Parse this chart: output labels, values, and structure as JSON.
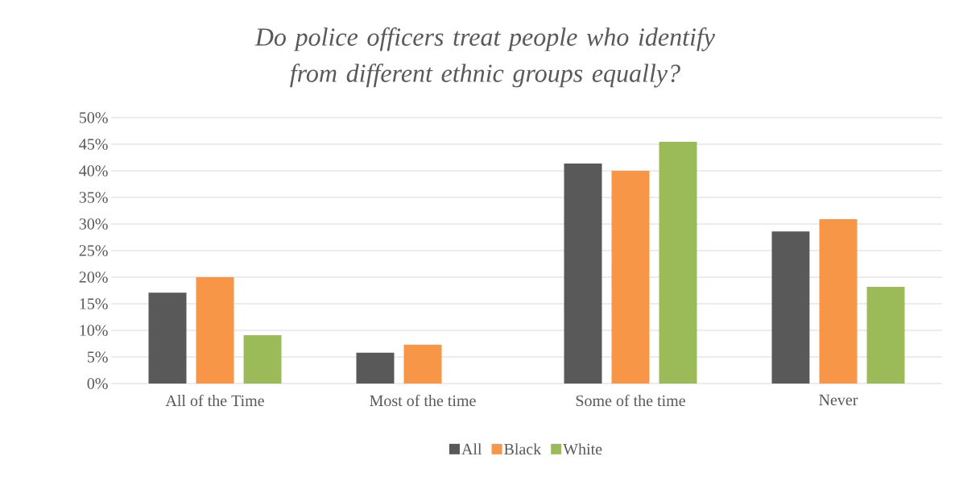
{
  "chart_data": {
    "type": "bar",
    "title": "Do police officers treat people who identify from different ethnic groups equally?",
    "categories": [
      "All of the Time",
      "Most of the time",
      "Some of the time",
      "Never"
    ],
    "series": [
      {
        "name": "All",
        "color": "#595959",
        "values": [
          17.1,
          5.8,
          41.4,
          28.6
        ]
      },
      {
        "name": "Black",
        "color": "#f79646",
        "values": [
          20,
          7.3,
          40,
          30.9
        ]
      },
      {
        "name": "White",
        "color": "#9bbb59",
        "values": [
          9.1,
          null,
          45.5,
          18.2
        ]
      }
    ],
    "ylim": [
      0,
      50
    ],
    "yticks": [
      {
        "value": 0,
        "label": "0%"
      },
      {
        "value": 5,
        "label": "5%"
      },
      {
        "value": 10,
        "label": "10%"
      },
      {
        "value": 15,
        "label": "15%"
      },
      {
        "value": 20,
        "label": "20%"
      },
      {
        "value": 25,
        "label": "25%"
      },
      {
        "value": 30,
        "label": "30%"
      },
      {
        "value": 35,
        "label": "35%"
      },
      {
        "value": 40,
        "label": "40%"
      },
      {
        "value": 45,
        "label": "45%"
      },
      {
        "value": 50,
        "label": "50%"
      }
    ],
    "grid": "y",
    "legend": "bottom"
  }
}
